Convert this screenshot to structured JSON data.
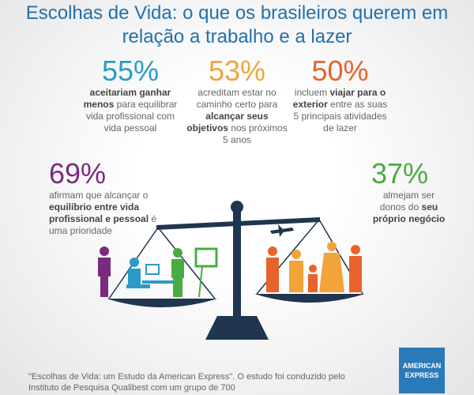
{
  "header": {
    "title": "Escolhas de Vida: o que os brasileiros querem em relação a trabalho e a lazer"
  },
  "stats": [
    {
      "value": "55%",
      "color": "#2a9bc6",
      "parts": [
        {
          "text": "aceitariam ganhar menos",
          "bold": true
        },
        {
          "text": "para equilibrar vida profissional com vida pessoal",
          "bold": false
        }
      ]
    },
    {
      "value": "53%",
      "color": "#f2a33a",
      "parts": [
        {
          "text": "acreditam estar no caminho certo para",
          "bold": false
        },
        {
          "text": "alcançar seus objetivos",
          "bold": true
        },
        {
          "text": "nos próximos 5 anos",
          "bold": false
        }
      ]
    },
    {
      "value": "50%",
      "color": "#e8632b",
      "parts": [
        {
          "text": "incluem",
          "bold": false
        },
        {
          "text": "viajar para o exterior",
          "bold": true
        },
        {
          "text": "entre as suas 5 principais atividades de lazer",
          "bold": false
        }
      ]
    },
    {
      "value": "69%",
      "color": "#7b2a7e",
      "parts": [
        {
          "text": "afirmam que alcançar o",
          "bold": false
        },
        {
          "text": "equilíbrio entre vida profissional e pessoal",
          "bold": true
        },
        {
          "text": "é uma prioridade",
          "bold": false
        }
      ]
    },
    {
      "value": "37%",
      "color": "#4aab43",
      "parts": [
        {
          "text": "almejam ser donos do",
          "bold": false
        },
        {
          "text": "seu próprio negócio",
          "bold": true
        }
      ]
    }
  ],
  "footer": {
    "note": "\"Escolhas de Vida: um Estudo da American Express\". O estudo foi conduzido pelo Instituto de Pesquisa Qualibest com um grupo de 700"
  },
  "logo": {
    "line1": "AMERICAN",
    "line2": "EXPRESS"
  }
}
